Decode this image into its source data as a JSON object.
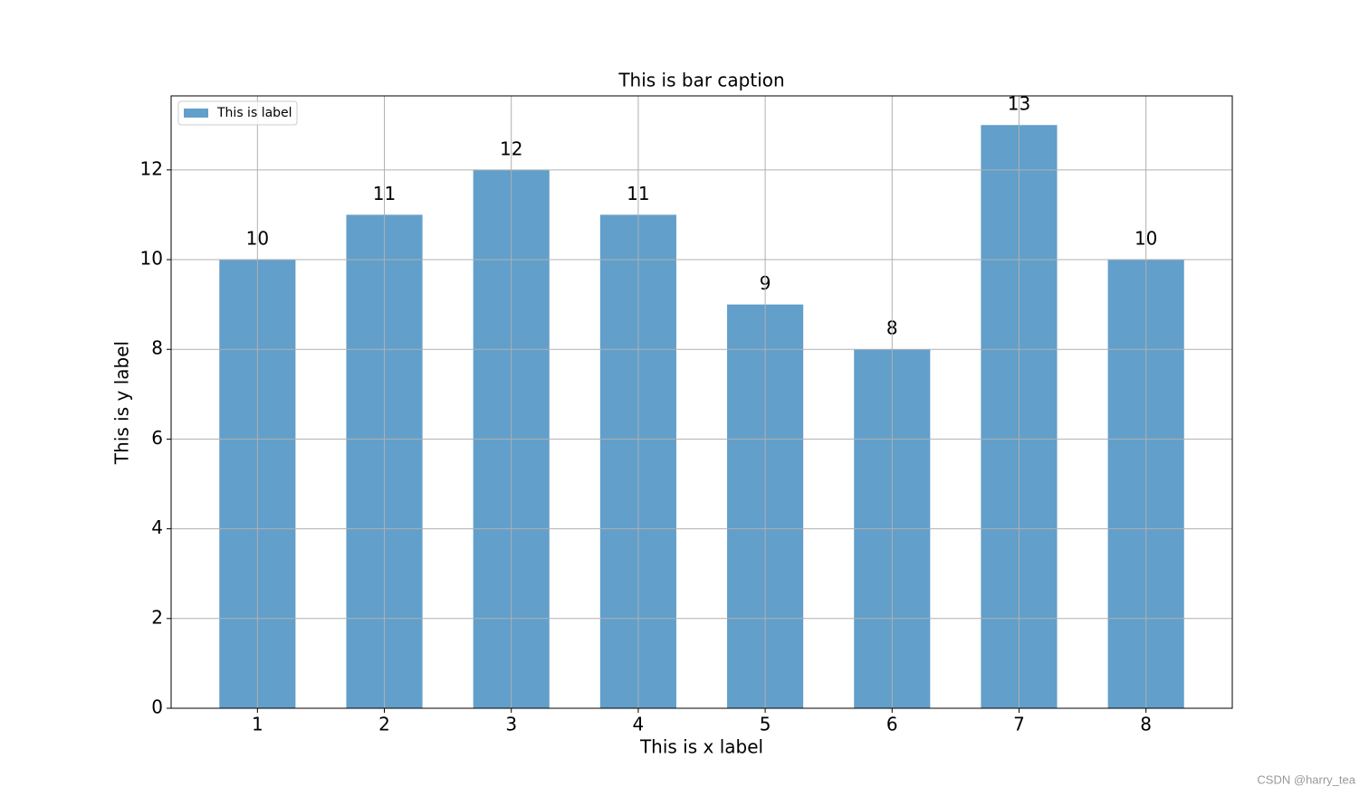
{
  "chart_data": {
    "type": "bar",
    "title": "This is bar caption",
    "x_label": "This is x label",
    "y_label": "This is y label",
    "x": [
      1,
      2,
      3,
      4,
      5,
      6,
      7,
      8
    ],
    "series": [
      {
        "name": "This is label",
        "color": "#629fca",
        "values": [
          10,
          11,
          12,
          11,
          9,
          8,
          13,
          10
        ]
      }
    ],
    "xlim": [
      0.32,
      8.68
    ],
    "xticks": [
      1,
      2,
      3,
      4,
      5,
      6,
      7,
      8
    ],
    "ylim": [
      0,
      13.65
    ],
    "yticks": [
      0,
      2,
      4,
      6,
      8,
      10,
      12
    ],
    "grid": true,
    "legend": "upper-left"
  },
  "watermark": "CSDN @harry_tea"
}
